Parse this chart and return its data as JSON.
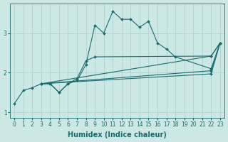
{
  "title": "",
  "xlabel": "Humidex (Indice chaleur)",
  "ylabel": "",
  "bg_color": "#cce8e4",
  "line_color": "#1a6b6b",
  "grid_color": "#aacfcb",
  "xlim": [
    -0.5,
    23.5
  ],
  "ylim": [
    0.85,
    3.75
  ],
  "yticks": [
    1,
    2,
    3
  ],
  "xticks": [
    0,
    1,
    2,
    3,
    4,
    5,
    6,
    7,
    8,
    9,
    10,
    11,
    12,
    13,
    14,
    15,
    16,
    17,
    18,
    19,
    20,
    21,
    22,
    23
  ],
  "lines": [
    {
      "x": [
        0,
        1,
        2,
        3,
        4,
        5,
        6,
        7,
        8,
        9,
        10,
        11,
        12,
        13,
        14,
        15,
        16,
        17,
        18,
        22,
        23
      ],
      "y": [
        1.22,
        1.55,
        1.62,
        1.72,
        1.72,
        1.5,
        1.72,
        1.8,
        2.2,
        3.2,
        3.0,
        3.55,
        3.35,
        3.35,
        3.15,
        3.3,
        2.75,
        2.6,
        2.4,
        2.1,
        2.75
      ]
    },
    {
      "x": [
        3,
        4,
        5,
        6,
        7,
        8,
        9,
        22,
        23
      ],
      "y": [
        1.72,
        1.72,
        1.5,
        1.72,
        1.85,
        2.3,
        2.4,
        2.42,
        2.75
      ]
    },
    {
      "x": [
        3,
        22,
        23
      ],
      "y": [
        1.72,
        2.42,
        2.75
      ]
    },
    {
      "x": [
        3,
        22,
        23
      ],
      "y": [
        1.72,
        2.05,
        2.75
      ]
    },
    {
      "x": [
        3,
        22,
        23
      ],
      "y": [
        1.72,
        1.97,
        2.75
      ]
    }
  ],
  "marker": "D",
  "markersize": 2.0,
  "linewidth": 0.8,
  "tick_fontsize": 5.5,
  "label_fontsize": 7.0
}
